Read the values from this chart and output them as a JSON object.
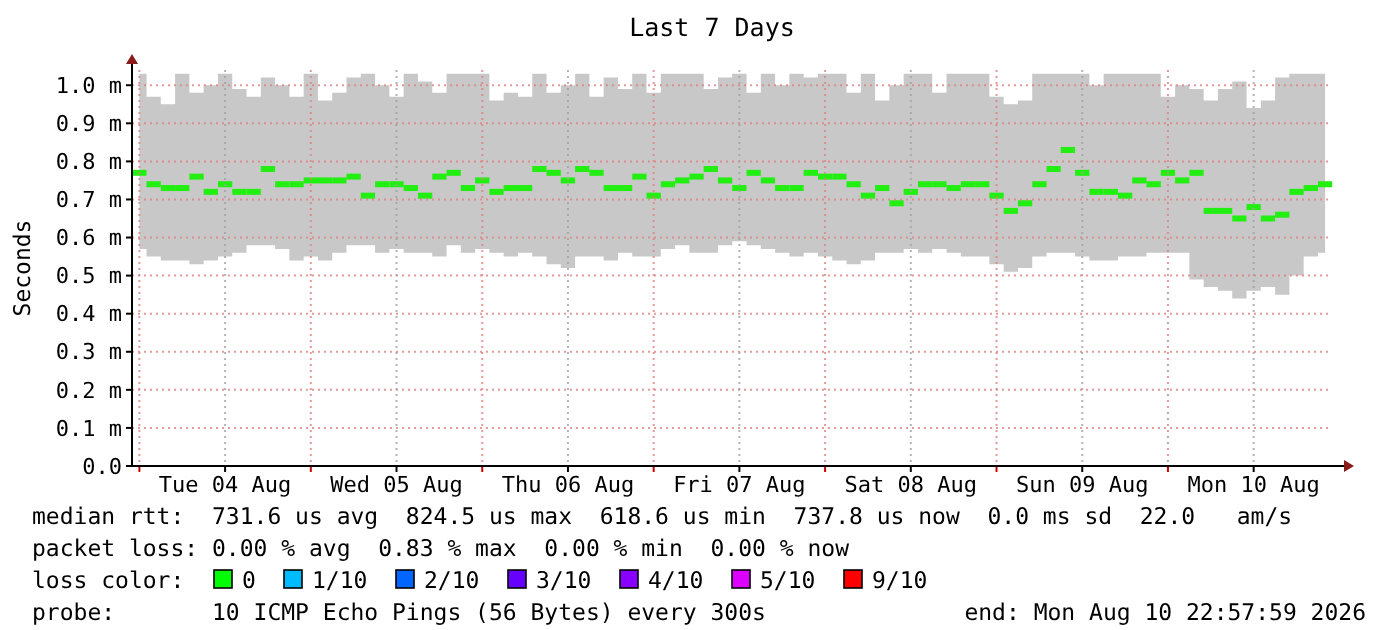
{
  "chart_data": {
    "type": "scatter",
    "title": "Last 7 Days",
    "ylabel": "Seconds",
    "marker": "square",
    "grid": true,
    "xlim": [
      "2026-08-03T22:58",
      "2026-08-10T22:58"
    ],
    "xticks": [
      {
        "value": "2026-08-04T00:00",
        "label": null
      },
      {
        "value": "2026-08-04T12:00",
        "label": "Tue 04 Aug"
      },
      {
        "value": "2026-08-05T00:00",
        "label": null
      },
      {
        "value": "2026-08-05T12:00",
        "label": "Wed 05 Aug"
      },
      {
        "value": "2026-08-06T00:00",
        "label": null
      },
      {
        "value": "2026-08-06T12:00",
        "label": "Thu 06 Aug"
      },
      {
        "value": "2026-08-07T00:00",
        "label": null
      },
      {
        "value": "2026-08-07T12:00",
        "label": "Fri 07 Aug"
      },
      {
        "value": "2026-08-08T00:00",
        "label": null
      },
      {
        "value": "2026-08-08T12:00",
        "label": "Sat 08 Aug"
      },
      {
        "value": "2026-08-09T00:00",
        "label": null
      },
      {
        "value": "2026-08-09T12:00",
        "label": "Sun 09 Aug"
      },
      {
        "value": "2026-08-10T00:00",
        "label": null
      },
      {
        "value": "2026-08-10T12:00",
        "label": "Mon 10 Aug"
      }
    ],
    "ylim": [
      0,
      1.04
    ],
    "yticks": [
      {
        "value": 0,
        "label": "0.0"
      },
      {
        "value": 0.1,
        "label": "0.1 m"
      },
      {
        "value": 0.2,
        "label": "0.2 m"
      },
      {
        "value": 0.3,
        "label": "0.3 m"
      },
      {
        "value": 0.4,
        "label": "0.4 m"
      },
      {
        "value": 0.5,
        "label": "0.5 m"
      },
      {
        "value": 0.6,
        "label": "0.6 m"
      },
      {
        "value": 0.7,
        "label": "0.7 m"
      },
      {
        "value": 0.8,
        "label": "0.8 m"
      },
      {
        "value": 0.9,
        "label": "0.9 m"
      },
      {
        "value": 1.0,
        "label": "1.0 m"
      }
    ],
    "x": [
      "2026-08-04T00:00",
      "2026-08-04T02:00",
      "2026-08-04T04:00",
      "2026-08-04T06:00",
      "2026-08-04T08:00",
      "2026-08-04T10:00",
      "2026-08-04T12:00",
      "2026-08-04T14:00",
      "2026-08-04T16:00",
      "2026-08-04T18:00",
      "2026-08-04T20:00",
      "2026-08-04T22:00",
      "2026-08-05T00:00",
      "2026-08-05T02:00",
      "2026-08-05T04:00",
      "2026-08-05T06:00",
      "2026-08-05T08:00",
      "2026-08-05T10:00",
      "2026-08-05T12:00",
      "2026-08-05T14:00",
      "2026-08-05T16:00",
      "2026-08-05T18:00",
      "2026-08-05T20:00",
      "2026-08-05T22:00",
      "2026-08-06T00:00",
      "2026-08-06T02:00",
      "2026-08-06T04:00",
      "2026-08-06T06:00",
      "2026-08-06T08:00",
      "2026-08-06T10:00",
      "2026-08-06T12:00",
      "2026-08-06T14:00",
      "2026-08-06T16:00",
      "2026-08-06T18:00",
      "2026-08-06T20:00",
      "2026-08-06T22:00",
      "2026-08-07T00:00",
      "2026-08-07T02:00",
      "2026-08-07T04:00",
      "2026-08-07T06:00",
      "2026-08-07T08:00",
      "2026-08-07T10:00",
      "2026-08-07T12:00",
      "2026-08-07T14:00",
      "2026-08-07T16:00",
      "2026-08-07T18:00",
      "2026-08-07T20:00",
      "2026-08-07T22:00",
      "2026-08-08T00:00",
      "2026-08-08T02:00",
      "2026-08-08T04:00",
      "2026-08-08T06:00",
      "2026-08-08T08:00",
      "2026-08-08T10:00",
      "2026-08-08T12:00",
      "2026-08-08T14:00",
      "2026-08-08T16:00",
      "2026-08-08T18:00",
      "2026-08-08T20:00",
      "2026-08-08T22:00",
      "2026-08-09T00:00",
      "2026-08-09T02:00",
      "2026-08-09T04:00",
      "2026-08-09T06:00",
      "2026-08-09T08:00",
      "2026-08-09T10:00",
      "2026-08-09T12:00",
      "2026-08-09T14:00",
      "2026-08-09T16:00",
      "2026-08-09T18:00",
      "2026-08-09T20:00",
      "2026-08-09T22:00",
      "2026-08-10T00:00",
      "2026-08-10T02:00",
      "2026-08-10T04:00",
      "2026-08-10T06:00",
      "2026-08-10T08:00",
      "2026-08-10T10:00",
      "2026-08-10T12:00",
      "2026-08-10T14:00",
      "2026-08-10T16:00",
      "2026-08-10T18:00",
      "2026-08-10T20:00",
      "2026-08-10T22:00"
    ],
    "series": [
      {
        "color": "#22ee11",
        "values": [
          0.77,
          0.74,
          0.73,
          0.73,
          0.76,
          0.72,
          0.74,
          0.72,
          0.72,
          0.78,
          0.74,
          0.74,
          0.75,
          0.75,
          0.75,
          0.76,
          0.71,
          0.74,
          0.74,
          0.73,
          0.71,
          0.76,
          0.77,
          0.73,
          0.75,
          0.72,
          0.73,
          0.73,
          0.78,
          0.77,
          0.75,
          0.78,
          0.77,
          0.73,
          0.73,
          0.76,
          0.71,
          0.74,
          0.75,
          0.76,
          0.78,
          0.75,
          0.73,
          0.77,
          0.75,
          0.73,
          0.73,
          0.77,
          0.76,
          0.76,
          0.74,
          0.71,
          0.73,
          0.69,
          0.72,
          0.74,
          0.74,
          0.73,
          0.74,
          0.74,
          0.71,
          0.67,
          0.69,
          0.74,
          0.78,
          0.83,
          0.77,
          0.72,
          0.72,
          0.71,
          0.75,
          0.74,
          0.77,
          0.75,
          0.77,
          0.67,
          0.67,
          0.65,
          0.68,
          0.65,
          0.66,
          0.72,
          0.73,
          0.74
        ],
        "lower": [
          0.57,
          0.55,
          0.54,
          0.54,
          0.53,
          0.54,
          0.55,
          0.56,
          0.58,
          0.58,
          0.57,
          0.54,
          0.55,
          0.54,
          0.56,
          0.58,
          0.58,
          0.56,
          0.57,
          0.56,
          0.56,
          0.55,
          0.58,
          0.56,
          0.57,
          0.56,
          0.55,
          0.56,
          0.55,
          0.53,
          0.52,
          0.55,
          0.55,
          0.54,
          0.56,
          0.55,
          0.55,
          0.57,
          0.58,
          0.56,
          0.56,
          0.58,
          0.59,
          0.58,
          0.57,
          0.56,
          0.55,
          0.56,
          0.55,
          0.54,
          0.53,
          0.54,
          0.56,
          0.56,
          0.57,
          0.56,
          0.57,
          0.56,
          0.55,
          0.55,
          0.53,
          0.51,
          0.52,
          0.55,
          0.56,
          0.56,
          0.55,
          0.54,
          0.54,
          0.55,
          0.55,
          0.56,
          0.56,
          0.56,
          0.49,
          0.47,
          0.46,
          0.44,
          0.46,
          0.47,
          0.45,
          0.5,
          0.55,
          0.56
        ],
        "upper": [
          1.03,
          0.97,
          0.95,
          1.03,
          0.98,
          1.0,
          1.03,
          0.99,
          0.97,
          1.02,
          1.0,
          0.97,
          1.03,
          0.96,
          0.98,
          1.02,
          1.03,
          1.0,
          0.97,
          1.03,
          1.01,
          0.98,
          1.03,
          1.03,
          1.03,
          0.96,
          0.98,
          0.97,
          1.03,
          0.98,
          1.0,
          1.03,
          0.97,
          1.02,
          0.99,
          1.03,
          0.98,
          1.03,
          1.03,
          1.03,
          0.99,
          1.02,
          1.03,
          0.98,
          1.03,
          1.0,
          1.03,
          1.02,
          1.03,
          1.03,
          0.98,
          1.03,
          0.96,
          1.0,
          1.03,
          1.03,
          0.98,
          1.03,
          1.03,
          1.03,
          0.97,
          0.95,
          0.96,
          1.03,
          1.03,
          1.03,
          1.03,
          1.0,
          1.03,
          1.03,
          1.03,
          1.03,
          0.97,
          1.0,
          0.99,
          0.96,
          0.99,
          1.01,
          0.94,
          0.96,
          1.02,
          1.03,
          1.03,
          1.03
        ]
      }
    ],
    "annotations": [
      "median rtt:  731.6 us avg  824.5 us max  618.6 us min  737.8 us now  0.0 ms sd  22.0   am/s",
      "packet loss: 0.00 % avg  0.83 % max  0.00 % min  0.00 % now",
      "loss color:",
      "0",
      "1/10",
      "2/10",
      "3/10",
      "4/10",
      "5/10",
      "9/10",
      "probe:       10 ICMP Echo Pings (56 Bytes) every 300s",
      "end: Mon Aug 10 22:57:59 2026"
    ]
  }
}
